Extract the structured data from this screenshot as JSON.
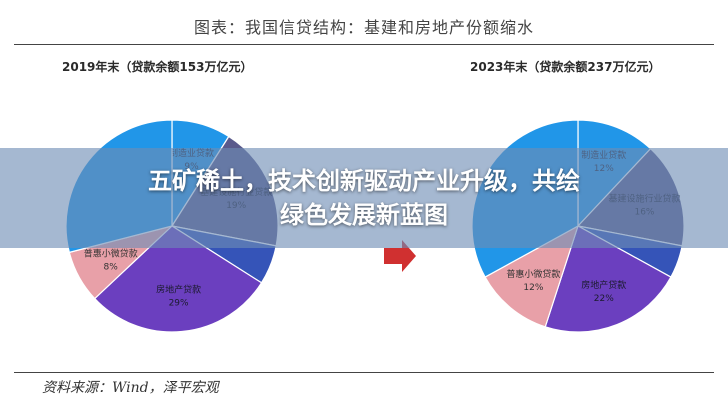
{
  "figure": {
    "title": "图表：我国信贷结构：基建和房地产份额缩水",
    "source": "资料来源：Wind，泽平宏观"
  },
  "banner": {
    "line1": "五矿稀土，技术创新驱动产业升级，共绘",
    "line2": "绿色发展新蓝图"
  },
  "colors": {
    "manufacturing": "#2196e8",
    "infrastructure": "#5a5a8c",
    "realestate": "#6b3fbf",
    "inclusive_small": "#e8a0a8",
    "other": "#3554b8",
    "banner_bg": "#6e8cb4"
  },
  "chart_data": [
    {
      "type": "pie",
      "title": "2019年末（贷款余额153万亿元）",
      "slices": [
        {
          "label": "制造业贷款",
          "value": 9,
          "value_label": "9%",
          "color_key": "manufacturing"
        },
        {
          "label": "基建设施行业贷款",
          "value": 19,
          "value_label": "19%",
          "color_key": "infrastructure"
        },
        {
          "label": "",
          "value": 6,
          "value_label": "",
          "color_key": "other"
        },
        {
          "label": "房地产贷款",
          "value": 29,
          "value_label": "29%",
          "color_key": "realestate"
        },
        {
          "label": "普惠小微贷款",
          "value": 8,
          "value_label": "8%",
          "color_key": "inclusive_small"
        },
        {
          "label": "",
          "value": 29,
          "value_label": "",
          "color_key": "manufacturing"
        }
      ]
    },
    {
      "type": "pie",
      "title": "2023年末（贷款余额237万亿元）",
      "slices": [
        {
          "label": "制造业贷款",
          "value": 12,
          "value_label": "12%",
          "color_key": "manufacturing"
        },
        {
          "label": "基建设施行业贷款",
          "value": 16,
          "value_label": "16%",
          "color_key": "infrastructure"
        },
        {
          "label": "",
          "value": 5,
          "value_label": "",
          "color_key": "other"
        },
        {
          "label": "房地产贷款",
          "value": 22,
          "value_label": "22%",
          "color_key": "realestate"
        },
        {
          "label": "普惠小微贷款",
          "value": 12,
          "value_label": "12%",
          "color_key": "inclusive_small"
        },
        {
          "label": "",
          "value": 33,
          "value_label": "",
          "color_key": "manufacturing"
        }
      ]
    }
  ]
}
